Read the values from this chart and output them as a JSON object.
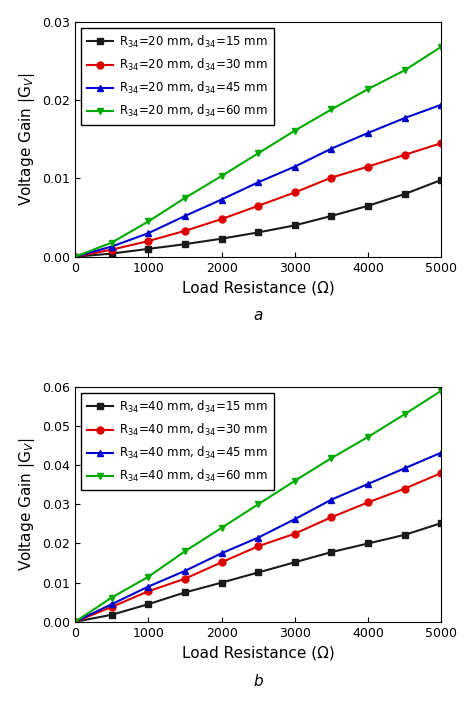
{
  "x_values": [
    0,
    500,
    1000,
    1500,
    2000,
    2500,
    3000,
    3500,
    4000,
    4500,
    5000
  ],
  "panel_a": {
    "title_label": "a",
    "ylabel": "Voltage Gain |G$_V$|",
    "xlabel": "Load Resistance (Ω)",
    "ylim": [
      0,
      0.03
    ],
    "yticks": [
      0.0,
      0.01,
      0.02,
      0.03
    ],
    "series": [
      {
        "label": "R$_{34}$=20 mm, d$_{34}$=15 mm",
        "color": "#1a1a1a",
        "marker": "s",
        "values": [
          0,
          0.0004,
          0.001,
          0.0016,
          0.0023,
          0.0031,
          0.004,
          0.0052,
          0.0065,
          0.008,
          0.0098
        ]
      },
      {
        "label": "R$_{34}$=20 mm, d$_{34}$=30 mm",
        "color": "#dd0000",
        "marker": "o",
        "values": [
          0,
          0.0009,
          0.002,
          0.0033,
          0.0048,
          0.0065,
          0.0082,
          0.0101,
          0.0115,
          0.013,
          0.0145
        ]
      },
      {
        "label": "R$_{34}$=20 mm, d$_{34}$=45 mm",
        "color": "#0000cc",
        "marker": "^",
        "values": [
          0,
          0.0013,
          0.003,
          0.0052,
          0.0073,
          0.0095,
          0.0115,
          0.0138,
          0.0158,
          0.0177,
          0.0194
        ]
      },
      {
        "label": "R$_{34}$=20 mm, d$_{34}$=60 mm",
        "color": "#00aa00",
        "marker": "v",
        "values": [
          0,
          0.0018,
          0.0045,
          0.0075,
          0.0103,
          0.0132,
          0.0161,
          0.0188,
          0.0214,
          0.0238,
          0.0268
        ]
      }
    ]
  },
  "panel_b": {
    "title_label": "b",
    "ylabel": "Voltage Gain |G$_V$|",
    "xlabel": "Load Resistance (Ω)",
    "ylim": [
      0,
      0.06
    ],
    "yticks": [
      0.0,
      0.01,
      0.02,
      0.03,
      0.04,
      0.05,
      0.06
    ],
    "series": [
      {
        "label": "R$_{34}$=40 mm, d$_{34}$=15 mm",
        "color": "#1a1a1a",
        "marker": "s",
        "values": [
          0,
          0.0018,
          0.0045,
          0.0075,
          0.01,
          0.0126,
          0.0152,
          0.0178,
          0.02,
          0.0222,
          0.0252
        ]
      },
      {
        "label": "R$_{34}$=40 mm, d$_{34}$=30 mm",
        "color": "#dd0000",
        "marker": "o",
        "values": [
          0,
          0.0038,
          0.0078,
          0.011,
          0.0152,
          0.0193,
          0.0225,
          0.0267,
          0.0305,
          0.034,
          0.038
        ]
      },
      {
        "label": "R$_{34}$=40 mm, d$_{34}$=45 mm",
        "color": "#0000cc",
        "marker": "^",
        "values": [
          0,
          0.0045,
          0.009,
          0.013,
          0.0175,
          0.0215,
          0.0262,
          0.0312,
          0.0352,
          0.0392,
          0.0432
        ]
      },
      {
        "label": "R$_{34}$=40 mm, d$_{34}$=60 mm",
        "color": "#00aa00",
        "marker": "v",
        "values": [
          0,
          0.0062,
          0.0115,
          0.018,
          0.024,
          0.03,
          0.036,
          0.0418,
          0.0472,
          0.053,
          0.059
        ]
      }
    ]
  },
  "figure_bg": "#ffffff",
  "axes_bg": "#ffffff",
  "legend_fontsize": 8.5,
  "tick_fontsize": 9,
  "label_fontsize": 11,
  "linewidth": 1.5,
  "markersize": 5
}
